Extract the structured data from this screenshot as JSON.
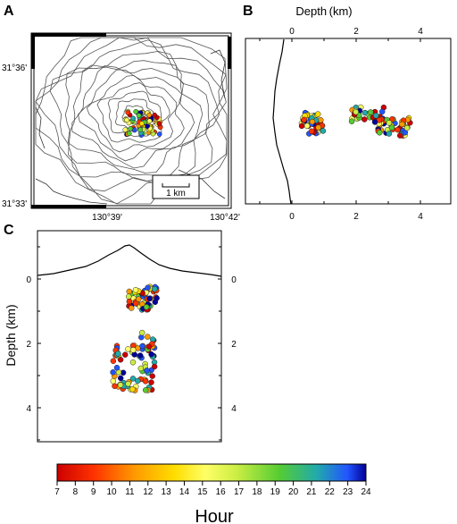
{
  "panels": {
    "a": {
      "letter": "A",
      "lat_labels": [
        "31°36'",
        "31°33'"
      ],
      "lon_labels": [
        "130°39'",
        "130°42'"
      ],
      "scale_label": "1 km"
    },
    "b": {
      "letter": "B",
      "axis_title": "Depth (km)",
      "top_ticks": [
        "0",
        "2",
        "4"
      ],
      "bottom_ticks": [
        "0",
        "2",
        "4"
      ]
    },
    "c": {
      "letter": "C",
      "axis_title": "Depth (km)",
      "left_ticks": [
        "0",
        "2",
        "4"
      ],
      "right_ticks": [
        "0",
        "2",
        "4"
      ]
    }
  },
  "colorbar": {
    "title": "Hour",
    "tick_labels": [
      "7",
      "8",
      "9",
      "10",
      "11",
      "12",
      "13",
      "14",
      "15",
      "16",
      "17",
      "18",
      "19",
      "20",
      "21",
      "22",
      "23",
      "24"
    ],
    "colors": [
      "#cc0000",
      "#ff3300",
      "#ff9900",
      "#ffdd00",
      "#ffff66",
      "#ccee44",
      "#55cc33",
      "#22aaaa",
      "#2255ff",
      "#000099"
    ]
  }
}
